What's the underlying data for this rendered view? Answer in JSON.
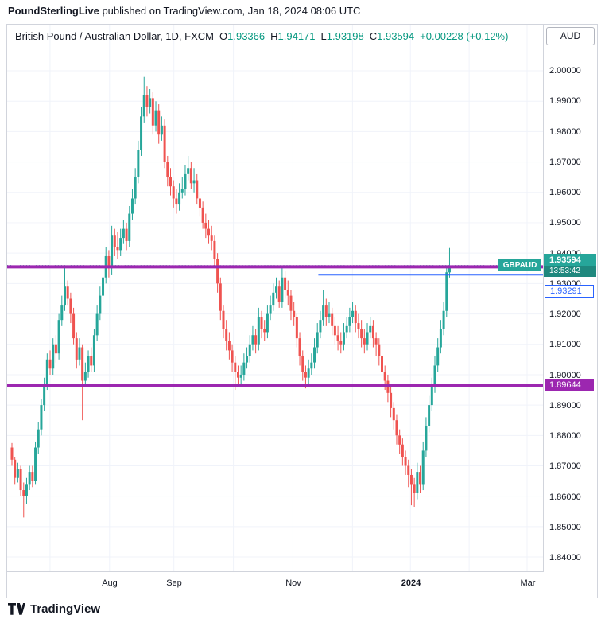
{
  "header": {
    "publisher": "PoundSterlingLive",
    "published_suffix": " published on TradingView.com, Jan 18, 2024 08:06 UTC"
  },
  "chart": {
    "symbol_title": "British Pound / Australian Dollar, 1D, FXCM",
    "ohlc": {
      "o_label": "O",
      "o": "1.93366",
      "h_label": "H",
      "h": "1.94171",
      "l_label": "L",
      "l": "1.93198",
      "c_label": "C",
      "c": "1.93594",
      "change": "+0.00228 (+0.12%)"
    },
    "currency_button": "AUD",
    "symbol_label": "GBPAUD",
    "price_badge": {
      "price": "1.93594",
      "countdown": "13:53:42"
    },
    "blue_level_label": "1.93291",
    "purple_level_label": "1.89644"
  },
  "footer": {
    "logo_text": "TradingView"
  },
  "chart_data": {
    "type": "candlestick",
    "title": "British Pound / Australian Dollar, 1D, FXCM",
    "symbol": "GBPAUD",
    "timeframe": "1D",
    "exchange": "FXCM",
    "current_price": 1.93594,
    "last_bar_ohlc": {
      "o": 1.93366,
      "h": 1.94171,
      "l": 1.93198,
      "c": 1.93594,
      "change": 0.00228,
      "change_pct": 0.12
    },
    "ylim": [
      1.8353,
      2.0152
    ],
    "y_scale": {
      "price_top": 2.0152,
      "price_bottom": 1.8353
    },
    "y_ticks": [
      2.0,
      1.99,
      1.98,
      1.97,
      1.96,
      1.95,
      1.94,
      1.93,
      1.92,
      1.91,
      1.9,
      1.89,
      1.88,
      1.87,
      1.86,
      1.85,
      1.84
    ],
    "x_axis_labels": [
      {
        "label": "Aug",
        "x": 129,
        "bold": false
      },
      {
        "label": "Sep",
        "x": 210,
        "bold": false
      },
      {
        "label": "Nov",
        "x": 360,
        "bold": false
      },
      {
        "label": "2024",
        "x": 508,
        "bold": true
      },
      {
        "label": "Mar",
        "x": 655,
        "bold": false
      }
    ],
    "x_gridlines": [
      54,
      129,
      210,
      285,
      360,
      435,
      508,
      582,
      655
    ],
    "grid": true,
    "bars": {
      "x0": 6,
      "dx": 3.7,
      "body_width": 3
    },
    "colors": {
      "up": "#26a69a",
      "down": "#ef5350",
      "text_up": "#089981",
      "grid": "#f0f3fa",
      "purple": "#9c27b0",
      "blue": "#2962ff"
    },
    "levels": [
      {
        "name": "resistance-level",
        "price": 1.9355,
        "color": "#9c27b0",
        "line_width": 4,
        "x_start": 0,
        "axis_label": null,
        "label_nudge": 0
      },
      {
        "name": "blue-level",
        "price": 1.93291,
        "color": "#2962ff",
        "line_width": 2,
        "x_start": 392,
        "axis_label": "1.93291",
        "label_nudge": 20
      },
      {
        "name": "support-level",
        "price": 1.89644,
        "color": "#9c27b0",
        "line_width": 4,
        "x_start": 0,
        "axis_label": "1.89644",
        "label_nudge": 0
      }
    ],
    "candles": [
      [
        1.876,
        1.8775,
        1.87,
        1.872
      ],
      [
        1.872,
        1.873,
        1.864,
        1.866
      ],
      [
        1.866,
        1.871,
        1.8645,
        1.869
      ],
      [
        1.869,
        1.87,
        1.86,
        1.862
      ],
      [
        1.862,
        1.8645,
        1.853,
        1.86
      ],
      [
        1.86,
        1.866,
        1.8575,
        1.864
      ],
      [
        1.864,
        1.87,
        1.862,
        1.868
      ],
      [
        1.868,
        1.87,
        1.863,
        1.865
      ],
      [
        1.865,
        1.878,
        1.864,
        1.876
      ],
      [
        1.876,
        1.8845,
        1.874,
        1.882
      ],
      [
        1.882,
        1.892,
        1.88,
        1.89
      ],
      [
        1.89,
        1.899,
        1.888,
        1.897
      ],
      [
        1.897,
        1.907,
        1.895,
        1.905
      ],
      [
        1.905,
        1.908,
        1.9,
        1.902
      ],
      [
        1.902,
        1.912,
        1.9,
        1.91
      ],
      [
        1.91,
        1.913,
        1.904,
        1.907
      ],
      [
        1.907,
        1.92,
        1.905,
        1.918
      ],
      [
        1.918,
        1.926,
        1.916,
        1.923
      ],
      [
        1.923,
        1.9355,
        1.921,
        1.929
      ],
      [
        1.929,
        1.931,
        1.923,
        1.925
      ],
      [
        1.925,
        1.927,
        1.917,
        1.92
      ],
      [
        1.92,
        1.922,
        1.91,
        1.912
      ],
      [
        1.912,
        1.914,
        1.902,
        1.905
      ],
      [
        1.905,
        1.912,
        1.903,
        1.909
      ],
      [
        1.909,
        1.91,
        1.885,
        1.898
      ],
      [
        1.898,
        1.904,
        1.896,
        1.901
      ],
      [
        1.901,
        1.908,
        1.899,
        1.906
      ],
      [
        1.906,
        1.909,
        1.901,
        1.903
      ],
      [
        1.903,
        1.915,
        1.901,
        1.913
      ],
      [
        1.913,
        1.923,
        1.911,
        1.92
      ],
      [
        1.92,
        1.929,
        1.918,
        1.926
      ],
      [
        1.926,
        1.935,
        1.924,
        1.932
      ],
      [
        1.932,
        1.942,
        1.93,
        1.939
      ],
      [
        1.939,
        1.941,
        1.932,
        1.935
      ],
      [
        1.935,
        1.949,
        1.933,
        1.946
      ],
      [
        1.946,
        1.948,
        1.939,
        1.942
      ],
      [
        1.942,
        1.947,
        1.938,
        1.941
      ],
      [
        1.941,
        1.948,
        1.939,
        1.945
      ],
      [
        1.945,
        1.951,
        1.943,
        1.948
      ],
      [
        1.948,
        1.95,
        1.941,
        1.944
      ],
      [
        1.944,
        1.9555,
        1.942,
        1.953
      ],
      [
        1.953,
        1.961,
        1.951,
        1.958
      ],
      [
        1.958,
        1.968,
        1.956,
        1.965
      ],
      [
        1.965,
        1.977,
        1.963,
        1.974
      ],
      [
        1.974,
        1.988,
        1.972,
        1.985
      ],
      [
        1.985,
        1.998,
        1.983,
        1.992
      ],
      [
        1.992,
        1.995,
        1.985,
        1.988
      ],
      [
        1.988,
        1.994,
        1.986,
        1.991
      ],
      [
        1.991,
        1.993,
        1.979,
        1.982
      ],
      [
        1.982,
        1.99,
        1.98,
        1.987
      ],
      [
        1.987,
        1.989,
        1.976,
        1.979
      ],
      [
        1.979,
        1.985,
        1.977,
        1.982
      ],
      [
        1.982,
        1.984,
        1.968,
        1.97
      ],
      [
        1.97,
        1.972,
        1.962,
        1.965
      ],
      [
        1.965,
        1.968,
        1.959,
        1.962
      ],
      [
        1.962,
        1.964,
        1.955,
        1.958
      ],
      [
        1.958,
        1.961,
        1.953,
        1.956
      ],
      [
        1.956,
        1.963,
        1.954,
        1.96
      ],
      [
        1.96,
        1.965,
        1.958,
        1.961
      ],
      [
        1.961,
        1.969,
        1.959,
        1.966
      ],
      [
        1.966,
        1.972,
        1.964,
        1.968
      ],
      [
        1.968,
        1.97,
        1.961,
        1.963
      ],
      [
        1.963,
        1.968,
        1.96,
        1.964
      ],
      [
        1.964,
        1.966,
        1.956,
        1.958
      ],
      [
        1.958,
        1.96,
        1.952,
        1.955
      ],
      [
        1.955,
        1.957,
        1.948,
        1.95
      ],
      [
        1.95,
        1.953,
        1.945,
        1.948
      ],
      [
        1.948,
        1.951,
        1.943,
        1.946
      ],
      [
        1.946,
        1.949,
        1.941,
        1.944
      ],
      [
        1.944,
        1.946,
        1.935,
        1.938
      ],
      [
        1.938,
        1.94,
        1.927,
        1.93
      ],
      [
        1.93,
        1.932,
        1.918,
        1.921
      ],
      [
        1.921,
        1.923,
        1.912,
        1.915
      ],
      [
        1.915,
        1.918,
        1.908,
        1.911
      ],
      [
        1.911,
        1.914,
        1.905,
        1.908
      ],
      [
        1.908,
        1.91,
        1.901,
        1.904
      ],
      [
        1.904,
        1.906,
        1.895,
        1.901
      ],
      [
        1.901,
        1.903,
        1.896,
        1.899
      ],
      [
        1.899,
        1.903,
        1.897,
        1.9
      ],
      [
        1.9,
        1.907,
        1.898,
        1.904
      ],
      [
        1.904,
        1.909,
        1.902,
        1.906
      ],
      [
        1.906,
        1.913,
        1.904,
        1.91
      ],
      [
        1.91,
        1.916,
        1.908,
        1.913
      ],
      [
        1.913,
        1.915,
        1.907,
        1.91
      ],
      [
        1.91,
        1.922,
        1.908,
        1.919
      ],
      [
        1.919,
        1.921,
        1.912,
        1.915
      ],
      [
        1.915,
        1.918,
        1.911,
        1.914
      ],
      [
        1.914,
        1.923,
        1.912,
        1.92
      ],
      [
        1.92,
        1.926,
        1.918,
        1.923
      ],
      [
        1.923,
        1.93,
        1.921,
        1.927
      ],
      [
        1.927,
        1.932,
        1.925,
        1.929
      ],
      [
        1.929,
        1.931,
        1.922,
        1.924
      ],
      [
        1.924,
        1.9355,
        1.922,
        1.932
      ],
      [
        1.932,
        1.934,
        1.925,
        1.928
      ],
      [
        1.928,
        1.931,
        1.923,
        1.926
      ],
      [
        1.926,
        1.928,
        1.918,
        1.921
      ],
      [
        1.921,
        1.924,
        1.916,
        1.919
      ],
      [
        1.919,
        1.92,
        1.909,
        1.912
      ],
      [
        1.912,
        1.914,
        1.903,
        1.906
      ],
      [
        1.906,
        1.908,
        1.898,
        1.901
      ],
      [
        1.901,
        1.903,
        1.8955,
        1.899
      ],
      [
        1.899,
        1.905,
        1.897,
        1.902
      ],
      [
        1.902,
        1.907,
        1.9,
        1.904
      ],
      [
        1.904,
        1.912,
        1.902,
        1.909
      ],
      [
        1.909,
        1.917,
        1.907,
        1.914
      ],
      [
        1.914,
        1.921,
        1.912,
        1.918
      ],
      [
        1.918,
        1.928,
        1.916,
        1.923
      ],
      [
        1.923,
        1.925,
        1.916,
        1.919
      ],
      [
        1.919,
        1.924,
        1.917,
        1.92
      ],
      [
        1.92,
        1.922,
        1.913,
        1.916
      ],
      [
        1.916,
        1.919,
        1.91,
        1.913
      ],
      [
        1.913,
        1.916,
        1.908,
        1.911
      ],
      [
        1.911,
        1.914,
        1.907,
        1.91
      ],
      [
        1.91,
        1.917,
        1.908,
        1.914
      ],
      [
        1.914,
        1.919,
        1.912,
        1.916
      ],
      [
        1.916,
        1.922,
        1.914,
        1.919
      ],
      [
        1.919,
        1.924,
        1.917,
        1.921
      ],
      [
        1.921,
        1.923,
        1.914,
        1.917
      ],
      [
        1.917,
        1.92,
        1.912,
        1.915
      ],
      [
        1.915,
        1.918,
        1.909,
        1.912
      ],
      [
        1.912,
        1.915,
        1.907,
        1.91
      ],
      [
        1.91,
        1.917,
        1.908,
        1.914
      ],
      [
        1.914,
        1.919,
        1.912,
        1.916
      ],
      [
        1.916,
        1.918,
        1.909,
        1.912
      ],
      [
        1.912,
        1.914,
        1.906,
        1.91
      ],
      [
        1.91,
        1.912,
        1.903,
        1.906
      ],
      [
        1.906,
        1.908,
        1.8958,
        1.901
      ],
      [
        1.901,
        1.903,
        1.895,
        1.898
      ],
      [
        1.898,
        1.9,
        1.891,
        1.894
      ],
      [
        1.894,
        1.896,
        1.886,
        1.889
      ],
      [
        1.889,
        1.891,
        1.882,
        1.885
      ],
      [
        1.885,
        1.887,
        1.877,
        1.88
      ],
      [
        1.88,
        1.882,
        1.874,
        1.877
      ],
      [
        1.877,
        1.879,
        1.87,
        1.873
      ],
      [
        1.873,
        1.875,
        1.867,
        1.87
      ],
      [
        1.87,
        1.872,
        1.863,
        1.867
      ],
      [
        1.867,
        1.869,
        1.857,
        1.864
      ],
      [
        1.864,
        1.866,
        1.8565,
        1.861
      ],
      [
        1.861,
        1.871,
        1.859,
        1.868
      ],
      [
        1.868,
        1.87,
        1.861,
        1.864
      ],
      [
        1.864,
        1.878,
        1.862,
        1.875
      ],
      [
        1.875,
        1.886,
        1.873,
        1.883
      ],
      [
        1.883,
        1.893,
        1.881,
        1.89
      ],
      [
        1.89,
        1.899,
        1.888,
        1.896
      ],
      [
        1.896,
        1.906,
        1.894,
        1.903
      ],
      [
        1.903,
        1.912,
        1.901,
        1.909
      ],
      [
        1.909,
        1.918,
        1.907,
        1.915
      ],
      [
        1.915,
        1.924,
        1.913,
        1.921
      ],
      [
        1.921,
        1.936,
        1.919,
        1.9337
      ],
      [
        1.93366,
        1.94171,
        1.93198,
        1.93594
      ]
    ]
  }
}
